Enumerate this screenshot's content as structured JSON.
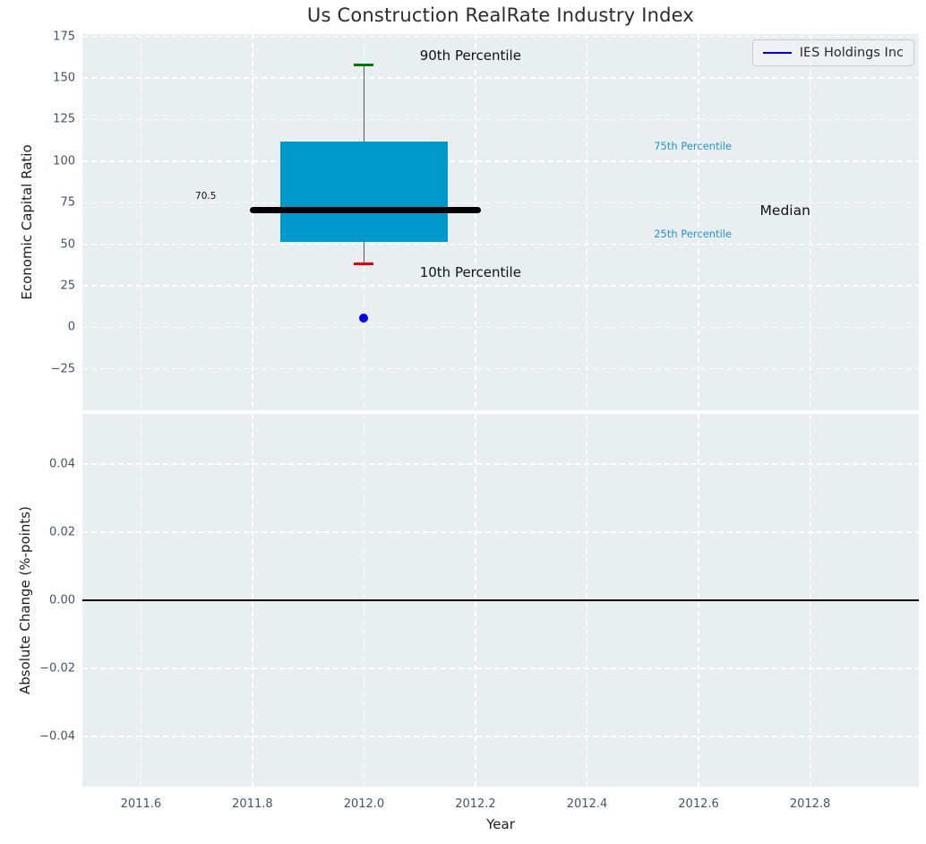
{
  "figure": {
    "title": "Us Construction RealRate Industry Index",
    "legend": {
      "label": "IES Holdings Inc"
    }
  },
  "colors": {
    "figure_bg": "#ffffff",
    "axes_bg": "#e9eef0",
    "grid": "#ffffff",
    "box_fill": "#0099cc",
    "median_line": "#000000",
    "p90_cap": "#007d00",
    "p10_cap": "#e8000b",
    "company_point": "#0202f0",
    "legend_line": "#0000e0",
    "tick_label": "#44536b",
    "axis_label": "#1c1c1c",
    "percentile_label": "#2196c9",
    "annotation_black": "#111111",
    "zero_line": "#000000"
  },
  "chart_data": [
    {
      "type": "boxplot",
      "name": "economic-capital-ratio",
      "title": "Us Construction RealRate Industry Index",
      "ylabel": "Economic Capital Ratio",
      "xlabel": "",
      "xlim": [
        2011.495,
        2012.995
      ],
      "ylim": [
        -50,
        176.5
      ],
      "xticks": [
        2011.6,
        2011.8,
        2012.0,
        2012.2,
        2012.4,
        2012.6,
        2012.8
      ],
      "xtick_labels": [],
      "yticks": [
        175,
        150,
        125,
        100,
        75,
        50,
        25,
        0,
        -25
      ],
      "ytick_labels": [
        "175",
        "150",
        "125",
        "100",
        "75",
        "50",
        "25",
        "0",
        "−25"
      ],
      "grid": true,
      "legend_position": "upper right",
      "box": {
        "x": 2012.0,
        "box_left": 2011.85,
        "box_right": 2012.15,
        "p10": 38,
        "p25": 51.5,
        "median": 70.5,
        "p75": 112,
        "p90": 158,
        "median_line_span": [
          2011.795,
          2012.21
        ],
        "median_value_label": "70.5"
      },
      "company_point": {
        "label": "IES Holdings Inc",
        "x": 2012.0,
        "y": 5.3
      },
      "annotations": [
        {
          "text": "90th Percentile",
          "x": 2012.1,
          "y": 163.5,
          "color_key": "annotation_black",
          "size": 15,
          "align": "left"
        },
        {
          "text": "75th Percentile",
          "x": 2012.52,
          "y": 109,
          "color_key": "percentile_label",
          "size": 11.5,
          "align": "left"
        },
        {
          "text": "Median",
          "x": 2012.71,
          "y": 70.5,
          "color_key": "annotation_black",
          "size": 15.5,
          "align": "left"
        },
        {
          "text": "25th Percentile",
          "x": 2012.52,
          "y": 56,
          "color_key": "percentile_label",
          "size": 11.5,
          "align": "left"
        },
        {
          "text": "10th Percentile",
          "x": 2012.1,
          "y": 33,
          "color_key": "annotation_black",
          "size": 15,
          "align": "left"
        },
        {
          "text": "70.5",
          "x": 2011.735,
          "y": 79,
          "color_key": "annotation_black",
          "size": 10.5,
          "align": "right"
        }
      ]
    },
    {
      "type": "line",
      "name": "absolute-change",
      "ylabel": "Absolute Change (%-points)",
      "xlabel": "Year",
      "xlim": [
        2011.495,
        2012.995
      ],
      "ylim": [
        -0.0547,
        0.0547
      ],
      "xticks": [
        2011.6,
        2011.8,
        2012.0,
        2012.2,
        2012.4,
        2012.6,
        2012.8
      ],
      "xtick_labels": [
        "2011.6",
        "2011.8",
        "2012.0",
        "2012.2",
        "2012.4",
        "2012.6",
        "2012.8"
      ],
      "yticks": [
        0.04,
        0.02,
        0.0,
        -0.02,
        -0.04
      ],
      "ytick_labels": [
        "0.04",
        "0.02",
        "0.00",
        "−0.02",
        "−0.04"
      ],
      "grid": true,
      "zero_line": 0.0,
      "series": []
    }
  ]
}
